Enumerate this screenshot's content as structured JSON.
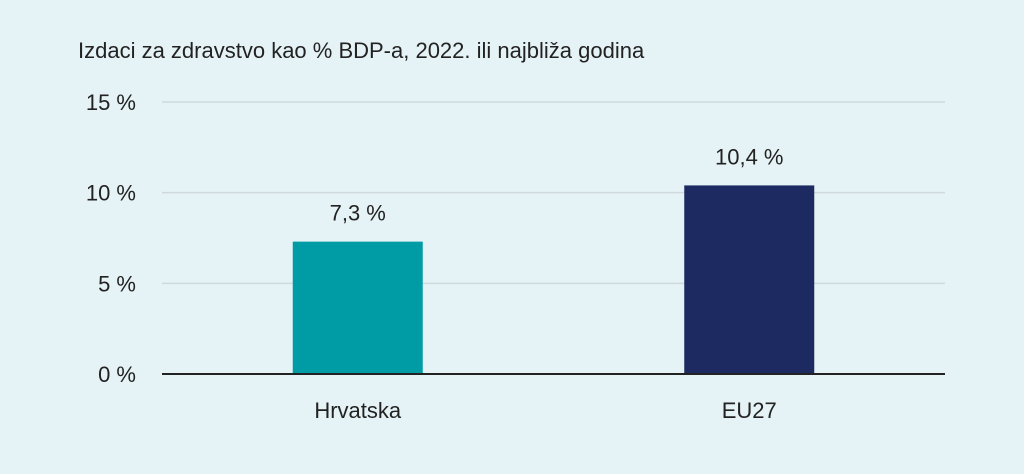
{
  "chart_data": {
    "type": "bar",
    "title": "Izdaci za zdravstvo kao % BDP-a, 2022. ili najbliža godina",
    "categories": [
      "Hrvatska",
      "EU27"
    ],
    "values": [
      7.3,
      10.4
    ],
    "value_labels": [
      "7,3 %",
      "10,4 %"
    ],
    "bar_colors": [
      "#009ca6",
      "#1c2a61"
    ],
    "ylim": [
      0,
      15
    ],
    "yticks": [
      0,
      5,
      10,
      15
    ],
    "ytick_labels": [
      "0 %",
      "5 %",
      "10 %",
      "15 %"
    ],
    "xlabel": "",
    "ylabel": "",
    "grid": true,
    "legend": "none"
  },
  "colors": {
    "background": "#e6f3f6",
    "gridline": "#cfd9dd",
    "axis": "#222222",
    "text": "#222222"
  }
}
